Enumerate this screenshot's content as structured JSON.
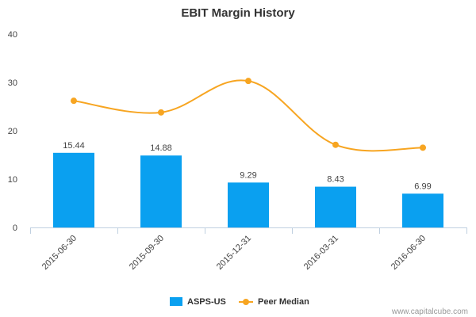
{
  "chart_data": {
    "type": "bar",
    "title": "EBIT Margin History",
    "categories": [
      "2015-06-30",
      "2015-09-30",
      "2015-12-31",
      "2016-03-31",
      "2016-06-30"
    ],
    "ylim": [
      0,
      40
    ],
    "yticks": [
      0,
      10,
      20,
      30,
      40
    ],
    "grid": false,
    "legend_position": "bottom-center",
    "series": [
      {
        "name": "ASPS-US",
        "type": "bar",
        "color": "#0aa0f0",
        "values": [
          15.44,
          14.88,
          9.29,
          8.43,
          6.99
        ],
        "data_labels": [
          "15.44",
          "14.88",
          "9.29",
          "8.43",
          "6.99"
        ]
      },
      {
        "name": "Peer Median",
        "type": "line",
        "color": "#f7a521",
        "values": [
          26.2,
          23.8,
          30.3,
          17.1,
          16.5
        ]
      }
    ]
  },
  "credit": "www.capitalcube.com"
}
